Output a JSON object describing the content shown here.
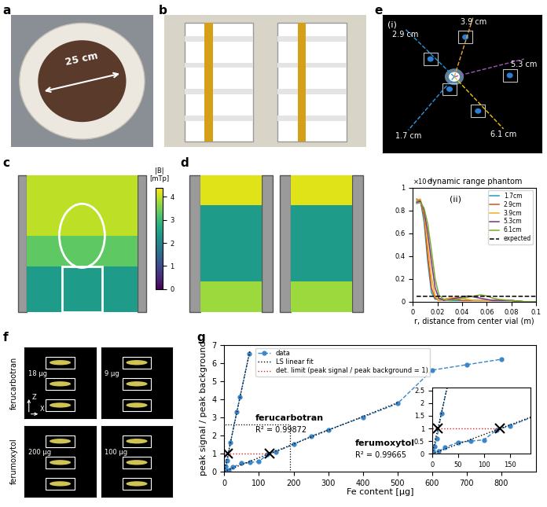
{
  "panel_labels": [
    "a",
    "b",
    "c",
    "d",
    "e",
    "f",
    "g"
  ],
  "panel_a": {
    "dimension": "25 cm"
  },
  "panel_c": {
    "colorbar": {
      "label": "|B|\n[mTp]",
      "range": [
        0,
        4.4
      ],
      "ticks": [
        0,
        1,
        2,
        3,
        4
      ]
    }
  },
  "panel_e": {
    "subpanels": [
      "(i)",
      "(ii)"
    ],
    "vials": [
      {
        "label": "2.9 cm",
        "color": "#1f9bd7"
      },
      {
        "label": "3.9 cm",
        "color": "#e8a33d"
      },
      {
        "label": "5.3 cm",
        "color": "#9b59b6"
      },
      {
        "label": "6.1 cm",
        "color": "#f1c40f"
      },
      {
        "label": "1.7 cm",
        "color": "#3498db"
      }
    ]
  },
  "panel_f": {
    "rows": [
      {
        "label": "ferucarbotran",
        "images": [
          "18 µg",
          "9 µg"
        ]
      },
      {
        "label": "ferumoxytol",
        "images": [
          "200 µg",
          "100 µg"
        ]
      }
    ],
    "axes": [
      "Z",
      "X"
    ]
  },
  "chart_data": [
    {
      "type": "line",
      "title": "dynamic range phantom",
      "x_label": "r, distance from center vial (m)",
      "y_multiplier": "×10⁻⁴",
      "x": [
        0.003,
        0.006,
        0.009,
        0.012,
        0.015,
        0.018,
        0.021,
        0.025,
        0.03,
        0.035,
        0.04,
        0.045,
        0.05,
        0.055,
        0.06,
        0.065,
        0.07,
        0.08,
        0.09,
        0.1
      ],
      "xlim": [
        0,
        0.1
      ],
      "xticks": [
        0,
        0.02,
        0.04,
        0.06,
        0.08,
        0.1
      ],
      "ylim": [
        0,
        0.0001
      ],
      "yticks": [
        0,
        {
          "value": 2e-05,
          "label": "0.2"
        },
        {
          "value": 4e-05,
          "label": "0.4"
        },
        {
          "value": 6e-05,
          "label": "0.6"
        },
        {
          "value": 8e-05,
          "label": "0.8"
        },
        {
          "value": 0.0001,
          "label": "1"
        }
      ],
      "legend": "upper right",
      "series": [
        {
          "name": "1.7cm",
          "color": "#1f9bbf",
          "line_style": "solid",
          "values": [
            8.8e-05,
            8.9e-05,
            7e-05,
            3.5e-05,
            8e-06,
            2e-06,
            3e-06,
            2e-06,
            1e-06,
            1e-06,
            1e-06,
            1e-06,
            1e-06,
            1e-06,
            1e-06,
            1e-06,
            1e-06,
            1e-06,
            0,
            0
          ]
        },
        {
          "name": "2.9cm",
          "color": "#D95319",
          "line_style": "solid",
          "values": [
            9e-05,
            8.8e-05,
            7.5e-05,
            4e-05,
            1.2e-05,
            3e-06,
            1e-06,
            2e-06,
            3e-06,
            2e-06,
            1e-06,
            1e-06,
            1e-06,
            1e-06,
            1e-06,
            1e-06,
            1e-06,
            1e-06,
            0,
            0
          ]
        },
        {
          "name": "3.9cm",
          "color": "#EDB120",
          "line_style": "solid",
          "values": [
            8.9e-05,
            9e-05,
            7.8e-05,
            5e-05,
            2.2e-05,
            5e-06,
            1e-06,
            2e-06,
            3e-06,
            4e-06,
            3e-06,
            2e-06,
            1e-06,
            1e-06,
            1e-06,
            1e-06,
            1e-06,
            1e-06,
            0,
            0
          ]
        },
        {
          "name": "5.3cm",
          "color": "#7E2F8E",
          "line_style": "solid",
          "values": [
            8.7e-05,
            8.8e-05,
            8e-05,
            6e-05,
            3.5e-05,
            1.2e-05,
            3e-06,
            1e-06,
            2e-06,
            3e-06,
            4e-06,
            5e-06,
            4e-06,
            3e-06,
            2e-06,
            1e-06,
            1e-06,
            1e-06,
            0,
            0
          ]
        },
        {
          "name": "6.1cm",
          "color": "#77AC30",
          "line_style": "solid",
          "values": [
            8.6e-05,
            8.7e-05,
            8.2e-05,
            6.8e-05,
            4.5e-05,
            2e-05,
            6e-06,
            2e-06,
            1e-06,
            2e-06,
            3e-06,
            4e-06,
            5e-06,
            6e-06,
            5e-06,
            3e-06,
            2e-06,
            1e-06,
            0,
            0
          ]
        },
        {
          "name": "expected",
          "color": "#000000",
          "line_style": "dashed",
          "values": [
            5e-06,
            5e-06,
            5e-06,
            5e-06,
            5e-06,
            5e-06,
            5e-06,
            5e-06,
            5e-06,
            5e-06,
            5e-06,
            5e-06,
            5e-06,
            5e-06,
            5e-06,
            5e-06,
            5e-06,
            5e-06,
            5e-06,
            5e-06
          ]
        }
      ]
    },
    {
      "type": "line",
      "x_label": "Fe content [µg]",
      "y_label": "peak signal / peak background",
      "xlim": [
        0,
        900
      ],
      "xticks": [
        0,
        100,
        200,
        300,
        400,
        500,
        600,
        700,
        800
      ],
      "ylim": [
        0,
        7
      ],
      "yticks": [
        0,
        1,
        2,
        3,
        4,
        5,
        6,
        7
      ],
      "legend": "upper center",
      "series": [
        {
          "name": "data",
          "color": "#3a86c8",
          "marker": "circle",
          "line_style": "dashed",
          "groups": [
            {
              "label": "ferucarbotran",
              "fit_label": "R² = 0.99872",
              "x": [
                2.25,
                4.5,
                9,
                18,
                36,
                45,
                72
              ],
              "values": [
                0.1,
                0.3,
                0.6,
                1.6,
                3.3,
                4.1,
                6.5
              ]
            },
            {
              "label": "ferumoxytol",
              "fit_label": "R² = 0.99665",
              "x": [
                12.5,
                25,
                50,
                75,
                100,
                125,
                150,
                200,
                250,
                300,
                400,
                500,
                600,
                700,
                800
              ],
              "values": [
                0.1,
                0.25,
                0.45,
                0.5,
                0.55,
                0.95,
                1.1,
                1.5,
                1.95,
                2.3,
                3.0,
                3.75,
                5.6,
                5.9,
                6.2
              ]
            }
          ]
        },
        {
          "name": "LS linear fit",
          "color": "#000000",
          "line_style": "dotted",
          "groups": [
            {
              "x": [
                0,
                74
              ],
              "values": [
                0.0,
                6.66
              ]
            },
            {
              "x": [
                0,
                500
              ],
              "values": [
                0.0,
                3.8
              ]
            }
          ]
        },
        {
          "name": "det. limit (peak signal / peak background = 1)",
          "color": "#e02020",
          "line_style": "dotted",
          "x": [
            0,
            130
          ],
          "values": [
            1,
            1
          ]
        }
      ],
      "limit_points": {
        "x": [
          11,
          130
        ],
        "values": [
          1,
          1
        ],
        "marker": "cross",
        "color": "#000000"
      },
      "inset": {
        "xlim": [
          0,
          190
        ],
        "ylim": [
          0,
          2.6
        ],
        "xticks": [
          0,
          50,
          100,
          150
        ],
        "yticks": [
          0,
          0.5,
          1,
          1.5,
          2,
          2.5
        ]
      }
    }
  ]
}
